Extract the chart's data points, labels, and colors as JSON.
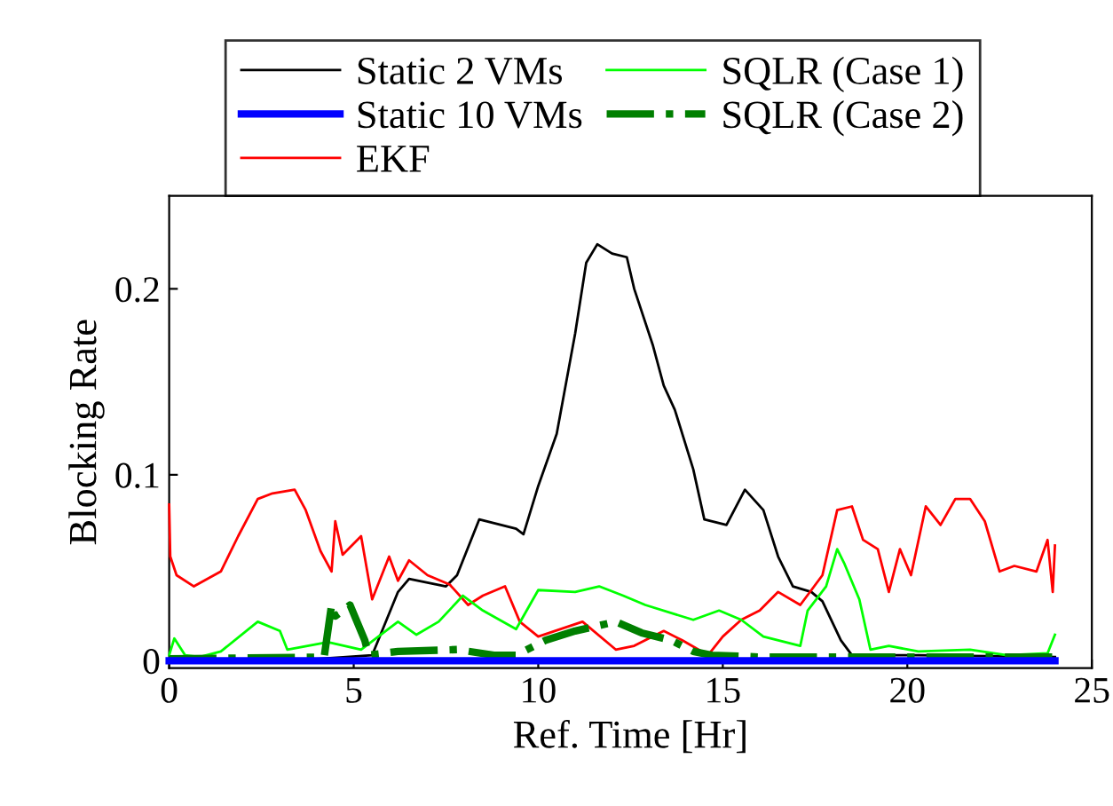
{
  "chart_data": {
    "type": "line",
    "xlabel": "Ref. Time [Hr]",
    "ylabel": "Blocking Rate",
    "xlim": [
      0,
      25
    ],
    "ylim": [
      -0.004,
      0.25
    ],
    "xticks": [
      0,
      5,
      10,
      15,
      20,
      25
    ],
    "yticks": [
      0,
      0.1,
      0.2
    ],
    "grid": false,
    "legend": "top",
    "series": [
      {
        "name": "Static 2 VMs",
        "color": "#000000",
        "line_style": "solid",
        "x": [
          0,
          3.3,
          5.5,
          6.2,
          6.5,
          7.5,
          7.8,
          8.4,
          9.4,
          9.6,
          10.0,
          10.5,
          11.0,
          11.3,
          11.6,
          12.0,
          12.4,
          12.6,
          13.1,
          13.4,
          13.7,
          14.2,
          14.5,
          15.1,
          15.6,
          16.1,
          16.5,
          16.9,
          17.4,
          17.7,
          18.2,
          18.5,
          20.3,
          24.0
        ],
        "values": [
          0,
          0,
          0.003,
          0.037,
          0.044,
          0.04,
          0.046,
          0.076,
          0.071,
          0.068,
          0.094,
          0.122,
          0.176,
          0.214,
          0.224,
          0.219,
          0.217,
          0.2,
          0.17,
          0.148,
          0.135,
          0.103,
          0.076,
          0.073,
          0.092,
          0.081,
          0.056,
          0.04,
          0.037,
          0.032,
          0.011,
          0.003,
          0.003,
          0.002
        ]
      },
      {
        "name": "Static 10 VMs",
        "color": "#0000ff",
        "line_style": "solid",
        "x": [
          0,
          24
        ],
        "values": [
          0,
          0
        ]
      },
      {
        "name": "EKF",
        "color": "#ff0000",
        "line_style": "solid",
        "x": [
          0,
          0.03,
          0.2,
          0.67,
          1.4,
          1.87,
          2.4,
          2.8,
          3.4,
          3.7,
          4.1,
          4.4,
          4.5,
          4.7,
          5.2,
          5.5,
          5.96,
          6.2,
          6.5,
          7.0,
          7.6,
          8.1,
          8.5,
          9.1,
          9.5,
          10.0,
          11.2,
          12.1,
          12.6,
          13.4,
          13.9,
          14.6,
          15.0,
          15.5,
          16.0,
          16.5,
          17.1,
          17.7,
          18.1,
          18.5,
          18.8,
          19.2,
          19.5,
          19.8,
          20.1,
          20.5,
          20.9,
          21.3,
          21.7,
          22.1,
          22.5,
          22.9,
          23.5,
          23.8,
          23.94,
          24.0
        ],
        "values": [
          0.084,
          0.056,
          0.046,
          0.04,
          0.048,
          0.067,
          0.087,
          0.09,
          0.092,
          0.081,
          0.059,
          0.048,
          0.075,
          0.057,
          0.067,
          0.033,
          0.056,
          0.043,
          0.054,
          0.046,
          0.041,
          0.03,
          0.035,
          0.04,
          0.021,
          0.013,
          0.021,
          0.006,
          0.008,
          0.016,
          0.011,
          0.003,
          0.013,
          0.022,
          0.027,
          0.037,
          0.03,
          0.046,
          0.081,
          0.083,
          0.065,
          0.06,
          0.037,
          0.06,
          0.046,
          0.083,
          0.073,
          0.087,
          0.087,
          0.075,
          0.048,
          0.051,
          0.048,
          0.065,
          0.037,
          0.062
        ]
      },
      {
        "name": "SQLR (Case 1)",
        "color": "#00ff00",
        "line_style": "solid",
        "x": [
          0,
          0.14,
          0.43,
          0.83,
          1.4,
          2.4,
          3.0,
          3.2,
          4.3,
          5.2,
          6.2,
          6.7,
          7.3,
          7.96,
          8.5,
          9.4,
          10.0,
          11.0,
          11.65,
          12.3,
          12.9,
          14.2,
          14.9,
          15.5,
          16.1,
          17.1,
          17.3,
          17.8,
          18.1,
          18.3,
          18.7,
          19.0,
          19.5,
          20.3,
          21.7,
          22.7,
          23.8,
          24.0
        ],
        "values": [
          0.003,
          0.012,
          0.003,
          0.002,
          0.005,
          0.021,
          0.016,
          0.006,
          0.01,
          0.006,
          0.021,
          0.014,
          0.021,
          0.035,
          0.027,
          0.017,
          0.038,
          0.037,
          0.04,
          0.035,
          0.03,
          0.022,
          0.027,
          0.022,
          0.013,
          0.008,
          0.027,
          0.04,
          0.06,
          0.052,
          0.033,
          0.006,
          0.008,
          0.005,
          0.006,
          0.003,
          0.004,
          0.014
        ]
      },
      {
        "name": "SQLR (Case 2)",
        "color": "#007f00",
        "line_style": "dashdot",
        "x": [
          0,
          4.2,
          4.4,
          4.5,
          4.9,
          5.3,
          5.4,
          6.2,
          7.8,
          8.8,
          9.4,
          10.2,
          11.0,
          12.1,
          12.8,
          13.6,
          14.2,
          14.7,
          16.0,
          24.0
        ],
        "values": [
          0.001,
          0.002,
          0.03,
          0.024,
          0.03,
          0.011,
          0.003,
          0.005,
          0.006,
          0.003,
          0.003,
          0.011,
          0.016,
          0.021,
          0.015,
          0.011,
          0.005,
          0.003,
          0.002,
          0.002
        ]
      }
    ]
  }
}
